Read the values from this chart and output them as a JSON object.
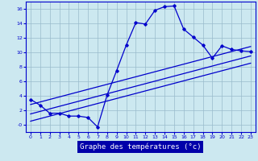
{
  "xlabel": "Graphe des températures (°c)",
  "background_color": "#cce8f0",
  "label_bg_color": "#0000aa",
  "label_text_color": "#ffffff",
  "grid_color": "#99bbcc",
  "line_color": "#0000cc",
  "xlim": [
    -0.5,
    23.5
  ],
  "ylim": [
    -1.0,
    17.0
  ],
  "x_ticks": [
    0,
    1,
    2,
    3,
    4,
    5,
    6,
    7,
    8,
    9,
    10,
    11,
    12,
    13,
    14,
    15,
    16,
    17,
    18,
    19,
    20,
    21,
    22,
    23
  ],
  "y_ticks": [
    0,
    2,
    4,
    6,
    8,
    10,
    12,
    14,
    16
  ],
  "y_tick_labels": [
    "-0",
    "2",
    "4",
    "6",
    "8",
    "10",
    "12",
    "14",
    "16"
  ],
  "main_x": [
    0,
    1,
    2,
    3,
    4,
    5,
    6,
    7,
    8,
    9,
    10,
    11,
    12,
    13,
    14,
    15,
    16,
    17,
    18,
    19,
    20,
    21,
    22,
    23
  ],
  "main_y": [
    3.5,
    2.7,
    1.6,
    1.6,
    1.2,
    1.2,
    1.0,
    -0.3,
    4.1,
    7.5,
    11.0,
    14.1,
    13.9,
    15.8,
    16.3,
    16.4,
    13.2,
    12.1,
    11.0,
    9.2,
    10.9,
    10.4,
    10.2,
    10.1
  ],
  "line1_x": [
    0,
    23
  ],
  "line1_y": [
    1.5,
    9.5
  ],
  "line2_x": [
    0,
    23
  ],
  "line2_y": [
    2.8,
    10.8
  ],
  "line3_x": [
    0,
    23
  ],
  "line3_y": [
    0.5,
    8.5
  ]
}
